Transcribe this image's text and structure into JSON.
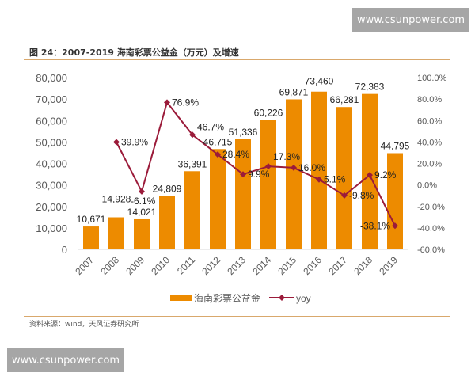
{
  "watermark": "www.csunpower.com",
  "title": "图 24：2007-2019 海南彩票公益金（万元）及增速",
  "source": "资料来源：wind，天风证券研究所",
  "chart_data": {
    "type": "bar+line",
    "categories": [
      "2007",
      "2008",
      "2009",
      "2010",
      "2011",
      "2012",
      "2013",
      "2014",
      "2015",
      "2016",
      "2017",
      "2018",
      "2019"
    ],
    "series": [
      {
        "name": "海南彩票公益金",
        "type": "bar",
        "axis": "left",
        "color": "#ED8B00",
        "values": [
          10671,
          14928,
          14021,
          24809,
          36391,
          46715,
          51336,
          60226,
          69871,
          73460,
          66281,
          72383,
          44795
        ],
        "labels": [
          "10,671",
          "14,928",
          "14,021",
          "24,809",
          "36,391",
          "46,715",
          "51,336",
          "60,226",
          "69,871",
          "73,460",
          "66,281",
          "72,383",
          "44,795"
        ]
      },
      {
        "name": "yoy",
        "type": "line",
        "axis": "right",
        "color": "#9B1B3A",
        "values": [
          null,
          39.9,
          -6.1,
          76.9,
          46.7,
          28.4,
          9.9,
          17.3,
          16.0,
          5.1,
          -9.8,
          9.2,
          -38.1
        ],
        "labels": [
          "",
          "39.9%",
          "-6.1%",
          "76.9%",
          "46.7%",
          "28.4%",
          "9.9%",
          "17.3%",
          "16.0%",
          "5.1%",
          "-9.8%",
          "9.2%",
          "-38.1%"
        ]
      }
    ],
    "left_axis": {
      "ylim": [
        0,
        80000
      ],
      "ticks": [
        "0",
        "10,000",
        "20,000",
        "30,000",
        "40,000",
        "50,000",
        "60,000",
        "70,000",
        "80,000"
      ]
    },
    "right_axis": {
      "ylim": [
        -60,
        100
      ],
      "ticks": [
        "-60.0%",
        "-40.0%",
        "-20.0%",
        "0.0%",
        "20.0%",
        "40.0%",
        "60.0%",
        "80.0%",
        "100.0%"
      ]
    },
    "grid": false,
    "legend": "bottom"
  }
}
